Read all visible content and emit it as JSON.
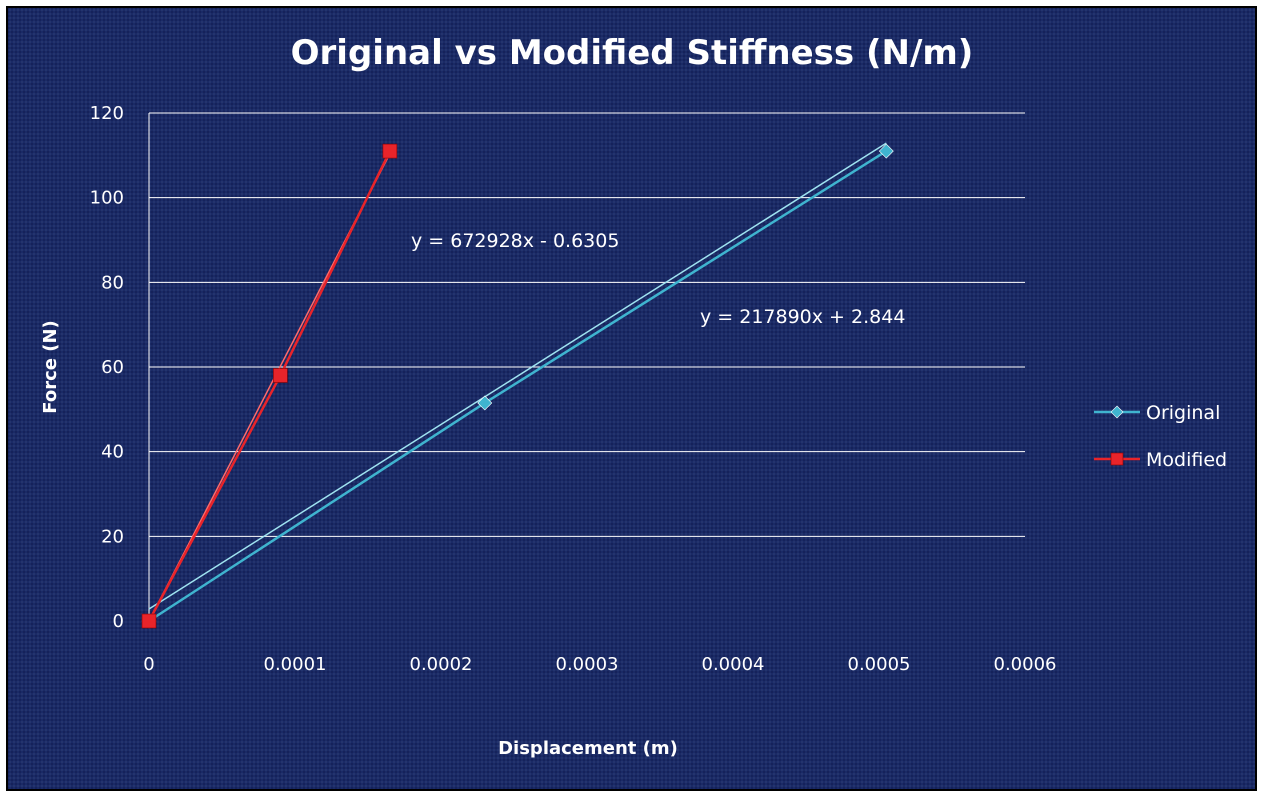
{
  "chart_data": {
    "type": "scatter",
    "title": "Original vs Modified Stiffness (N/m)",
    "xlabel": "Displacement (m)",
    "ylabel": "Force (N)",
    "xlim": [
      0,
      0.0006
    ],
    "ylim": [
      0,
      120
    ],
    "xticks": [
      "0",
      "0.0001",
      "0.0002",
      "0.0003",
      "0.0004",
      "0.0005",
      "0.0006"
    ],
    "yticks": [
      "0",
      "20",
      "40",
      "60",
      "80",
      "100",
      "120"
    ],
    "grid": "horizontal",
    "legend_position": "right",
    "series": [
      {
        "name": "Original",
        "color": "#3fb4cf",
        "marker": "diamond",
        "points": [
          [
            0,
            0
          ],
          [
            0.00023,
            51.5
          ],
          [
            0.000505,
            111
          ]
        ],
        "trendline": {
          "slope": 217890,
          "intercept": 2.844,
          "label": "y = 217890x + 2.844"
        }
      },
      {
        "name": "Modified",
        "color": "#e8242a",
        "marker": "square",
        "points": [
          [
            0,
            0
          ],
          [
            9e-05,
            58
          ],
          [
            0.000165,
            111
          ]
        ],
        "trendline": {
          "slope": 672928,
          "intercept": -0.6305,
          "label": "y = 672928x - 0.6305"
        }
      }
    ]
  }
}
